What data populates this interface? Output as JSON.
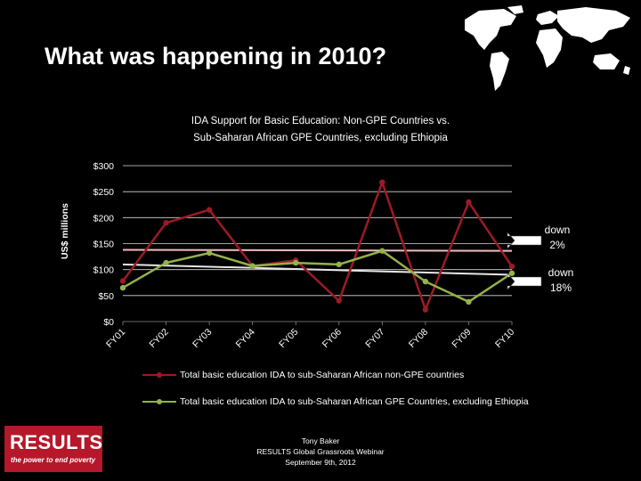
{
  "slide": {
    "title": "What was happening in 2010?",
    "credit_line1": "Tony Baker",
    "credit_line2": "RESULTS Global Grassroots Webinar",
    "credit_line3": "September 9th, 2012"
  },
  "logo": {
    "name": "RESULTS",
    "tagline": "the power to end poverty"
  },
  "annotations": {
    "top": [
      "down",
      "2%"
    ],
    "bottom": [
      "down",
      "18%"
    ]
  },
  "colors": {
    "background": "#000000",
    "series1": "#9b1b25",
    "series2": "#95b249",
    "trend1": "#f2bcc0",
    "trend2": "#e7e7e7",
    "logo_bg": "#b5182a"
  },
  "chart_data": {
    "type": "line",
    "title": "IDA Support for Basic Education: Non-GPE Countries vs. Sub-Saharan African GPE Countries, excluding Ethiopia",
    "title_lines": [
      "IDA Support for Basic Education: Non-GPE Countries vs.",
      "Sub-Saharan African GPE Countries, excluding Ethiopia"
    ],
    "ylabel": "US$ millions",
    "xlabel": "",
    "ylim": [
      0,
      300
    ],
    "yticks": [
      "$0",
      "$50",
      "$100",
      "$150",
      "$200",
      "$250",
      "$300"
    ],
    "categories": [
      "FY01",
      "FY02",
      "FY03",
      "FY04",
      "FY05",
      "FY06",
      "FY07",
      "FY08",
      "FY09",
      "FY10"
    ],
    "series": [
      {
        "name": "Total basic education IDA to sub-Saharan African non-GPE countries",
        "values": [
          78,
          190,
          215,
          107,
          118,
          40,
          268,
          23,
          230,
          106
        ]
      },
      {
        "name": "Total basic education IDA to sub-Saharan African GPE Countries, excluding Ethiopia",
        "values": [
          65,
          113,
          132,
          107,
          113,
          110,
          136,
          77,
          38,
          93
        ]
      }
    ],
    "trendlines": [
      {
        "values": [
          138,
          136
        ]
      },
      {
        "values": [
          110,
          90
        ]
      }
    ],
    "grid": true,
    "legend": "bottom"
  }
}
